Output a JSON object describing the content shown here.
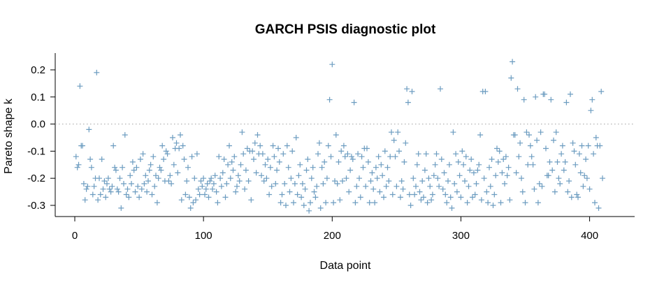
{
  "chart_data": {
    "type": "scatter",
    "title": "GARCH PSIS diagnostic plot",
    "xlabel": "Data point",
    "ylabel": "Pareto shape k",
    "xlim": [
      0,
      410
    ],
    "ylim": [
      -0.33,
      0.24
    ],
    "xticks": [
      0,
      100,
      200,
      300,
      400
    ],
    "yticks": [
      -0.3,
      -0.2,
      -0.1,
      0.0,
      0.1,
      0.2
    ],
    "ytick_labels": [
      "-0.3",
      "-0.2",
      "-0.1",
      "0.0",
      "0.1",
      "0.2"
    ],
    "reference_line": 0.0,
    "marker": "+",
    "marker_color": "#6c9cc0",
    "points": [
      [
        1,
        -0.12
      ],
      [
        2,
        -0.16
      ],
      [
        3,
        -0.15
      ],
      [
        4,
        0.14
      ],
      [
        5,
        -0.08
      ],
      [
        6,
        -0.08
      ],
      [
        7,
        -0.22
      ],
      [
        8,
        -0.28
      ],
      [
        9,
        -0.24
      ],
      [
        10,
        -0.23
      ],
      [
        11,
        -0.02
      ],
      [
        12,
        -0.13
      ],
      [
        13,
        -0.16
      ],
      [
        14,
        -0.26
      ],
      [
        15,
        -0.23
      ],
      [
        16,
        -0.2
      ],
      [
        17,
        0.19
      ],
      [
        18,
        -0.28
      ],
      [
        19,
        -0.2
      ],
      [
        20,
        -0.26
      ],
      [
        21,
        -0.13
      ],
      [
        22,
        -0.24
      ],
      [
        23,
        -0.21
      ],
      [
        24,
        -0.27
      ],
      [
        25,
        -0.22
      ],
      [
        26,
        -0.2
      ],
      [
        27,
        -0.24
      ],
      [
        28,
        -0.25
      ],
      [
        29,
        -0.23
      ],
      [
        30,
        -0.08
      ],
      [
        31,
        -0.16
      ],
      [
        32,
        -0.17
      ],
      [
        33,
        -0.24
      ],
      [
        34,
        -0.25
      ],
      [
        35,
        -0.2
      ],
      [
        36,
        -0.31
      ],
      [
        37,
        -0.16
      ],
      [
        38,
        -0.22
      ],
      [
        39,
        -0.04
      ],
      [
        40,
        -0.26
      ],
      [
        41,
        -0.24
      ],
      [
        42,
        -0.27
      ],
      [
        43,
        -0.19
      ],
      [
        44,
        -0.22
      ],
      [
        45,
        -0.14
      ],
      [
        46,
        -0.17
      ],
      [
        47,
        -0.25
      ],
      [
        48,
        -0.16
      ],
      [
        49,
        -0.23
      ],
      [
        50,
        -0.27
      ],
      [
        51,
        -0.13
      ],
      [
        52,
        -0.24
      ],
      [
        53,
        -0.11
      ],
      [
        54,
        -0.22
      ],
      [
        55,
        -0.19
      ],
      [
        56,
        -0.25
      ],
      [
        57,
        -0.21
      ],
      [
        58,
        -0.17
      ],
      [
        59,
        -0.15
      ],
      [
        60,
        -0.26
      ],
      [
        61,
        -0.12
      ],
      [
        62,
        -0.23
      ],
      [
        63,
        -0.19
      ],
      [
        64,
        -0.29
      ],
      [
        65,
        -0.2
      ],
      [
        66,
        -0.16
      ],
      [
        67,
        -0.17
      ],
      [
        68,
        -0.08
      ],
      [
        69,
        -0.13
      ],
      [
        70,
        -0.21
      ],
      [
        71,
        -0.1
      ],
      [
        72,
        -0.11
      ],
      [
        73,
        -0.21
      ],
      [
        74,
        -0.19
      ],
      [
        75,
        -0.22
      ],
      [
        76,
        -0.05
      ],
      [
        77,
        -0.15
      ],
      [
        78,
        -0.09
      ],
      [
        79,
        -0.07
      ],
      [
        80,
        -0.18
      ],
      [
        81,
        -0.09
      ],
      [
        82,
        -0.04
      ],
      [
        83,
        -0.28
      ],
      [
        84,
        -0.08
      ],
      [
        85,
        -0.13
      ],
      [
        86,
        -0.26
      ],
      [
        87,
        -0.21
      ],
      [
        88,
        -0.16
      ],
      [
        89,
        -0.27
      ],
      [
        90,
        -0.31
      ],
      [
        91,
        -0.12
      ],
      [
        92,
        -0.29
      ],
      [
        93,
        -0.2
      ],
      [
        94,
        -0.28
      ],
      [
        95,
        -0.11
      ],
      [
        96,
        -0.24
      ],
      [
        97,
        -0.26
      ],
      [
        98,
        -0.21
      ],
      [
        99,
        -0.23
      ],
      [
        100,
        -0.2
      ],
      [
        101,
        -0.26
      ],
      [
        102,
        -0.24
      ],
      [
        103,
        -0.22
      ],
      [
        104,
        -0.27
      ],
      [
        105,
        -0.21
      ],
      [
        106,
        -0.2
      ],
      [
        107,
        -0.24
      ],
      [
        108,
        -0.22
      ],
      [
        109,
        -0.19
      ],
      [
        110,
        -0.25
      ],
      [
        111,
        -0.29
      ],
      [
        112,
        -0.12
      ],
      [
        113,
        -0.2
      ],
      [
        114,
        -0.23
      ],
      [
        115,
        -0.18
      ],
      [
        116,
        -0.13
      ],
      [
        117,
        -0.27
      ],
      [
        118,
        -0.22
      ],
      [
        119,
        -0.15
      ],
      [
        120,
        -0.08
      ],
      [
        121,
        -0.2
      ],
      [
        122,
        -0.14
      ],
      [
        123,
        -0.17
      ],
      [
        124,
        -0.12
      ],
      [
        125,
        -0.25
      ],
      [
        126,
        -0.23
      ],
      [
        127,
        -0.19
      ],
      [
        128,
        -0.21
      ],
      [
        129,
        -0.15
      ],
      [
        130,
        -0.03
      ],
      [
        131,
        -0.11
      ],
      [
        132,
        -0.24
      ],
      [
        133,
        -0.17
      ],
      [
        134,
        -0.09
      ],
      [
        135,
        -0.21
      ],
      [
        136,
        -0.1
      ],
      [
        137,
        -0.28
      ],
      [
        138,
        -0.1
      ],
      [
        139,
        -0.13
      ],
      [
        140,
        -0.07
      ],
      [
        141,
        -0.18
      ],
      [
        142,
        -0.04
      ],
      [
        143,
        -0.11
      ],
      [
        144,
        -0.08
      ],
      [
        145,
        -0.19
      ],
      [
        146,
        -0.11
      ],
      [
        147,
        -0.21
      ],
      [
        148,
        -0.15
      ],
      [
        149,
        -0.2
      ],
      [
        150,
        -0.13
      ],
      [
        151,
        -0.26
      ],
      [
        152,
        -0.16
      ],
      [
        153,
        -0.23
      ],
      [
        154,
        -0.08
      ],
      [
        155,
        -0.12
      ],
      [
        156,
        -0.22
      ],
      [
        157,
        -0.17
      ],
      [
        158,
        -0.09
      ],
      [
        159,
        -0.14
      ],
      [
        160,
        -0.29
      ],
      [
        161,
        -0.26
      ],
      [
        162,
        -0.11
      ],
      [
        163,
        -0.22
      ],
      [
        164,
        -0.3
      ],
      [
        165,
        -0.08
      ],
      [
        166,
        -0.16
      ],
      [
        167,
        -0.25
      ],
      [
        168,
        -0.2
      ],
      [
        169,
        -0.1
      ],
      [
        170,
        -0.29
      ],
      [
        171,
        -0.22
      ],
      [
        172,
        -0.05
      ],
      [
        173,
        -0.26
      ],
      [
        174,
        -0.19
      ],
      [
        175,
        -0.15
      ],
      [
        176,
        -0.27
      ],
      [
        177,
        -0.22
      ],
      [
        178,
        -0.3
      ],
      [
        179,
        -0.24
      ],
      [
        180,
        -0.17
      ],
      [
        181,
        -0.13
      ],
      [
        182,
        -0.32
      ],
      [
        183,
        -0.29
      ],
      [
        184,
        -0.2
      ],
      [
        185,
        -0.16
      ],
      [
        186,
        -0.25
      ],
      [
        187,
        -0.27
      ],
      [
        188,
        -0.23
      ],
      [
        189,
        -0.11
      ],
      [
        190,
        -0.07
      ],
      [
        191,
        -0.31
      ],
      [
        192,
        -0.16
      ],
      [
        193,
        -0.22
      ],
      [
        194,
        -0.14
      ],
      [
        195,
        -0.29
      ],
      [
        196,
        -0.2
      ],
      [
        197,
        -0.08
      ],
      [
        198,
        0.09
      ],
      [
        199,
        -0.12
      ],
      [
        200,
        0.22
      ],
      [
        201,
        -0.29
      ],
      [
        202,
        -0.21
      ],
      [
        203,
        -0.04
      ],
      [
        204,
        -0.22
      ],
      [
        205,
        -0.14
      ],
      [
        206,
        -0.28
      ],
      [
        207,
        -0.1
      ],
      [
        208,
        -0.21
      ],
      [
        209,
        -0.08
      ],
      [
        210,
        -0.12
      ],
      [
        211,
        -0.2
      ],
      [
        212,
        -0.11
      ],
      [
        213,
        -0.25
      ],
      [
        214,
        -0.17
      ],
      [
        215,
        -0.12
      ],
      [
        216,
        -0.13
      ],
      [
        217,
        0.08
      ],
      [
        218,
        -0.29
      ],
      [
        219,
        -0.23
      ],
      [
        220,
        -0.11
      ],
      [
        221,
        -0.2
      ],
      [
        222,
        -0.27
      ],
      [
        223,
        -0.12
      ],
      [
        224,
        -0.16
      ],
      [
        225,
        -0.09
      ],
      [
        226,
        -0.23
      ],
      [
        227,
        -0.09
      ],
      [
        228,
        -0.14
      ],
      [
        229,
        -0.29
      ],
      [
        230,
        -0.21
      ],
      [
        231,
        -0.18
      ],
      [
        232,
        -0.24
      ],
      [
        233,
        -0.29
      ],
      [
        234,
        -0.16
      ],
      [
        235,
        -0.2
      ],
      [
        236,
        -0.12
      ],
      [
        237,
        -0.25
      ],
      [
        238,
        -0.15
      ],
      [
        239,
        -0.19
      ],
      [
        240,
        -0.27
      ],
      [
        241,
        -0.1
      ],
      [
        242,
        -0.23
      ],
      [
        243,
        -0.16
      ],
      [
        244,
        -0.21
      ],
      [
        245,
        -0.12
      ],
      [
        246,
        -0.03
      ],
      [
        247,
        -0.26
      ],
      [
        248,
        -0.06
      ],
      [
        249,
        -0.12
      ],
      [
        250,
        -0.23
      ],
      [
        251,
        -0.03
      ],
      [
        252,
        -0.1
      ],
      [
        253,
        -0.27
      ],
      [
        254,
        -0.21
      ],
      [
        255,
        -0.24
      ],
      [
        256,
        -0.14
      ],
      [
        257,
        -0.07
      ],
      [
        258,
        0.13
      ],
      [
        259,
        0.08
      ],
      [
        260,
        -0.26
      ],
      [
        261,
        -0.3
      ],
      [
        262,
        0.12
      ],
      [
        263,
        -0.2
      ],
      [
        264,
        -0.26
      ],
      [
        265,
        -0.23
      ],
      [
        266,
        -0.15
      ],
      [
        267,
        -0.11
      ],
      [
        268,
        -0.25
      ],
      [
        269,
        -0.28
      ],
      [
        270,
        -0.21
      ],
      [
        271,
        -0.27
      ],
      [
        272,
        -0.17
      ],
      [
        273,
        -0.11
      ],
      [
        274,
        -0.29
      ],
      [
        275,
        -0.2
      ],
      [
        276,
        -0.23
      ],
      [
        277,
        -0.28
      ],
      [
        278,
        -0.26
      ],
      [
        279,
        -0.19
      ],
      [
        280,
        -0.15
      ],
      [
        281,
        -0.11
      ],
      [
        282,
        -0.2
      ],
      [
        283,
        -0.23
      ],
      [
        284,
        0.13
      ],
      [
        285,
        -0.13
      ],
      [
        286,
        -0.24
      ],
      [
        287,
        -0.18
      ],
      [
        288,
        -0.26
      ],
      [
        289,
        -0.29
      ],
      [
        290,
        -0.21
      ],
      [
        291,
        -0.15
      ],
      [
        292,
        -0.27
      ],
      [
        293,
        -0.31
      ],
      [
        294,
        -0.03
      ],
      [
        295,
        -0.22
      ],
      [
        296,
        -0.11
      ],
      [
        297,
        -0.25
      ],
      [
        298,
        -0.14
      ],
      [
        299,
        -0.19
      ],
      [
        300,
        -0.27
      ],
      [
        301,
        -0.1
      ],
      [
        302,
        -0.15
      ],
      [
        303,
        -0.21
      ],
      [
        304,
        -0.12
      ],
      [
        305,
        -0.29
      ],
      [
        306,
        -0.23
      ],
      [
        307,
        -0.17
      ],
      [
        308,
        -0.13
      ],
      [
        309,
        -0.27
      ],
      [
        310,
        -0.18
      ],
      [
        311,
        -0.26
      ],
      [
        312,
        -0.22
      ],
      [
        313,
        -0.17
      ],
      [
        314,
        -0.15
      ],
      [
        315,
        -0.04
      ],
      [
        316,
        -0.28
      ],
      [
        317,
        0.12
      ],
      [
        318,
        -0.2
      ],
      [
        319,
        0.12
      ],
      [
        320,
        -0.25
      ],
      [
        321,
        -0.29
      ],
      [
        322,
        -0.16
      ],
      [
        323,
        -0.23
      ],
      [
        324,
        -0.13
      ],
      [
        325,
        -0.3
      ],
      [
        326,
        -0.26
      ],
      [
        327,
        -0.19
      ],
      [
        328,
        -0.09
      ],
      [
        329,
        -0.14
      ],
      [
        330,
        -0.1
      ],
      [
        331,
        -0.29
      ],
      [
        332,
        -0.18
      ],
      [
        333,
        -0.13
      ],
      [
        334,
        -0.22
      ],
      [
        335,
        -0.12
      ],
      [
        336,
        -0.19
      ],
      [
        337,
        -0.16
      ],
      [
        338,
        -0.28
      ],
      [
        339,
        0.17
      ],
      [
        340,
        0.23
      ],
      [
        341,
        -0.04
      ],
      [
        342,
        -0.04
      ],
      [
        343,
        -0.18
      ],
      [
        344,
        0.13
      ],
      [
        345,
        -0.12
      ],
      [
        346,
        -0.07
      ],
      [
        347,
        -0.2
      ],
      [
        348,
        -0.25
      ],
      [
        349,
        0.09
      ],
      [
        350,
        -0.29
      ],
      [
        351,
        -0.03
      ],
      [
        352,
        -0.15
      ],
      [
        353,
        -0.04
      ],
      [
        354,
        -0.08
      ],
      [
        355,
        -0.12
      ],
      [
        356,
        -0.15
      ],
      [
        357,
        -0.24
      ],
      [
        358,
        0.1
      ],
      [
        359,
        -0.06
      ],
      [
        360,
        -0.29
      ],
      [
        361,
        -0.22
      ],
      [
        362,
        -0.03
      ],
      [
        363,
        -0.23
      ],
      [
        364,
        0.11
      ],
      [
        365,
        0.11
      ],
      [
        366,
        -0.09
      ],
      [
        367,
        -0.19
      ],
      [
        368,
        -0.19
      ],
      [
        369,
        -0.14
      ],
      [
        370,
        0.09
      ],
      [
        371,
        -0.17
      ],
      [
        372,
        -0.06
      ],
      [
        373,
        -0.25
      ],
      [
        374,
        -0.03
      ],
      [
        375,
        -0.14
      ],
      [
        376,
        -0.2
      ],
      [
        377,
        -0.22
      ],
      [
        378,
        -0.11
      ],
      [
        379,
        -0.08
      ],
      [
        380,
        -0.17
      ],
      [
        381,
        -0.14
      ],
      [
        382,
        0.08
      ],
      [
        383,
        -0.25
      ],
      [
        384,
        -0.21
      ],
      [
        385,
        0.11
      ],
      [
        386,
        -0.27
      ],
      [
        387,
        -0.07
      ],
      [
        388,
        -0.1
      ],
      [
        389,
        -0.15
      ],
      [
        390,
        -0.26
      ],
      [
        391,
        -0.27
      ],
      [
        392,
        -0.11
      ],
      [
        393,
        -0.18
      ],
      [
        394,
        -0.08
      ],
      [
        395,
        -0.23
      ],
      [
        396,
        -0.19
      ],
      [
        397,
        -0.13
      ],
      [
        398,
        -0.2
      ],
      [
        399,
        -0.08
      ],
      [
        400,
        -0.24
      ],
      [
        401,
        0.05
      ],
      [
        402,
        0.09
      ],
      [
        403,
        -0.11
      ],
      [
        404,
        -0.29
      ],
      [
        405,
        -0.05
      ],
      [
        406,
        -0.08
      ],
      [
        407,
        -0.31
      ],
      [
        408,
        -0.08
      ],
      [
        409,
        0.12
      ],
      [
        410,
        -0.2
      ]
    ]
  }
}
